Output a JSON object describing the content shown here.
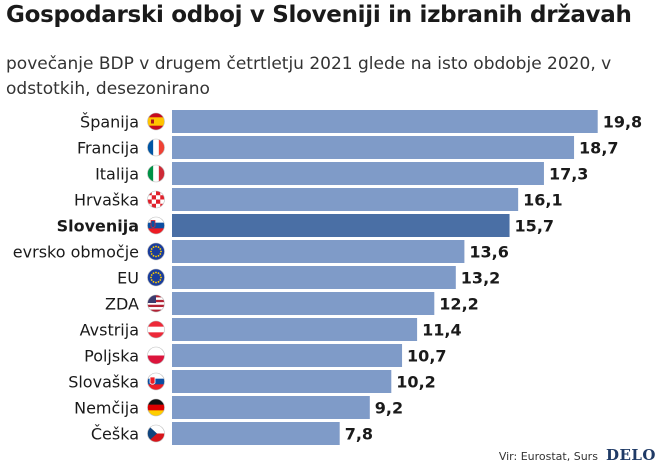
{
  "title": "Gospodarski odboj v Sloveniji in izbranih državah",
  "subtitle": "povečanje BDP v drugem četrtletju 2021 glede na isto obdobje 2020, v odstotkih, desezonirano",
  "source": "Vir: Eurostat, Surs",
  "logo": "DELO",
  "colors": {
    "bar": "#7f9bc8",
    "highlight": "#4a6fa5"
  },
  "chart_data": {
    "type": "bar",
    "orientation": "horizontal",
    "highlight": "Slovenija",
    "categories": [
      "Španija",
      "Francija",
      "Italija",
      "Hrvaška",
      "Slovenija",
      "evrsko območje",
      "EU",
      "ZDA",
      "Avstrija",
      "Poljska",
      "Slovaška",
      "Nemčija",
      "Češka"
    ],
    "values": [
      19.8,
      18.7,
      17.3,
      16.1,
      15.7,
      13.6,
      13.2,
      12.2,
      11.4,
      10.7,
      10.2,
      9.2,
      7.8
    ],
    "value_labels": [
      "19,8",
      "18,7",
      "17,3",
      "16,1",
      "15,7",
      "13,6",
      "13,2",
      "12,2",
      "11,4",
      "10,7",
      "10,2",
      "9,2",
      "7,8"
    ],
    "flags": [
      "spain-flag-icon",
      "france-flag-icon",
      "italy-flag-icon",
      "croatia-flag-icon",
      "slovenia-flag-icon",
      "eu-flag-icon",
      "eu-flag-icon",
      "usa-flag-icon",
      "austria-flag-icon",
      "poland-flag-icon",
      "slovakia-flag-icon",
      "germany-flag-icon",
      "czechia-flag-icon"
    ],
    "xlim": [
      0,
      20
    ],
    "grid": false,
    "legend": "none"
  }
}
